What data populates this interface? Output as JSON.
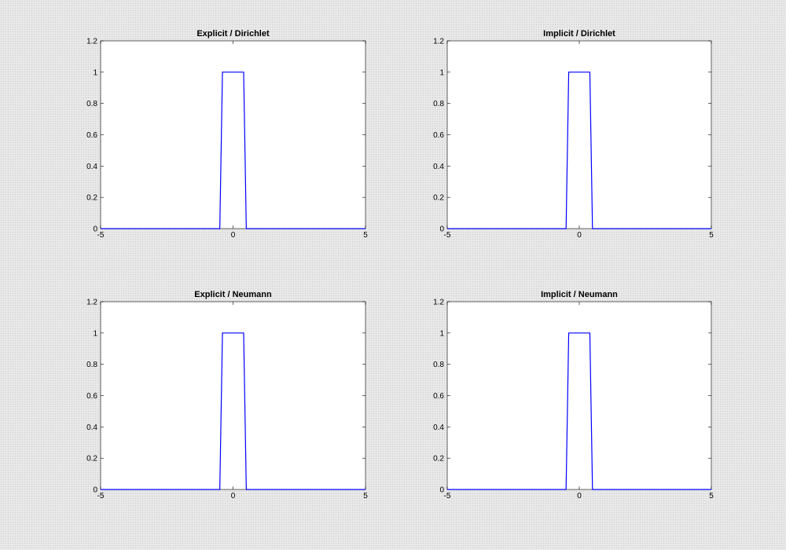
{
  "colors": {
    "line": "#0000ff",
    "axes": "#000000",
    "plot_bg": "#ffffff"
  },
  "chart_data": [
    {
      "type": "line",
      "title": "Explicit / Dirichlet",
      "xlim": [
        -5,
        5
      ],
      "ylim": [
        0,
        1.2
      ],
      "xticks": [
        -5,
        0,
        5
      ],
      "yticks": [
        0,
        0.2,
        0.4,
        0.6,
        0.8,
        1,
        1.2
      ],
      "x": [
        -5,
        -0.5,
        -0.4,
        0.4,
        0.5,
        5
      ],
      "y": [
        0,
        0,
        1,
        1,
        0,
        0
      ]
    },
    {
      "type": "line",
      "title": "Implicit / Dirichlet",
      "xlim": [
        -5,
        5
      ],
      "ylim": [
        0,
        1.2
      ],
      "xticks": [
        -5,
        0,
        5
      ],
      "yticks": [
        0,
        0.2,
        0.4,
        0.6,
        0.8,
        1,
        1.2
      ],
      "x": [
        -5,
        -0.5,
        -0.4,
        0.4,
        0.5,
        5
      ],
      "y": [
        0,
        0,
        1,
        1,
        0,
        0
      ]
    },
    {
      "type": "line",
      "title": "Explicit / Neumann",
      "xlim": [
        -5,
        5
      ],
      "ylim": [
        0,
        1.2
      ],
      "xticks": [
        -5,
        0,
        5
      ],
      "yticks": [
        0,
        0.2,
        0.4,
        0.6,
        0.8,
        1,
        1.2
      ],
      "x": [
        -5,
        -0.5,
        -0.4,
        0.4,
        0.5,
        5
      ],
      "y": [
        0,
        0,
        1,
        1,
        0,
        0
      ]
    },
    {
      "type": "line",
      "title": "Implicit / Neumann",
      "xlim": [
        -5,
        5
      ],
      "ylim": [
        0,
        1.2
      ],
      "xticks": [
        -5,
        0,
        5
      ],
      "yticks": [
        0,
        0.2,
        0.4,
        0.6,
        0.8,
        1,
        1.2
      ],
      "x": [
        -5,
        -0.5,
        -0.4,
        0.4,
        0.5,
        5
      ],
      "y": [
        0,
        0,
        1,
        1,
        0,
        0
      ]
    }
  ]
}
